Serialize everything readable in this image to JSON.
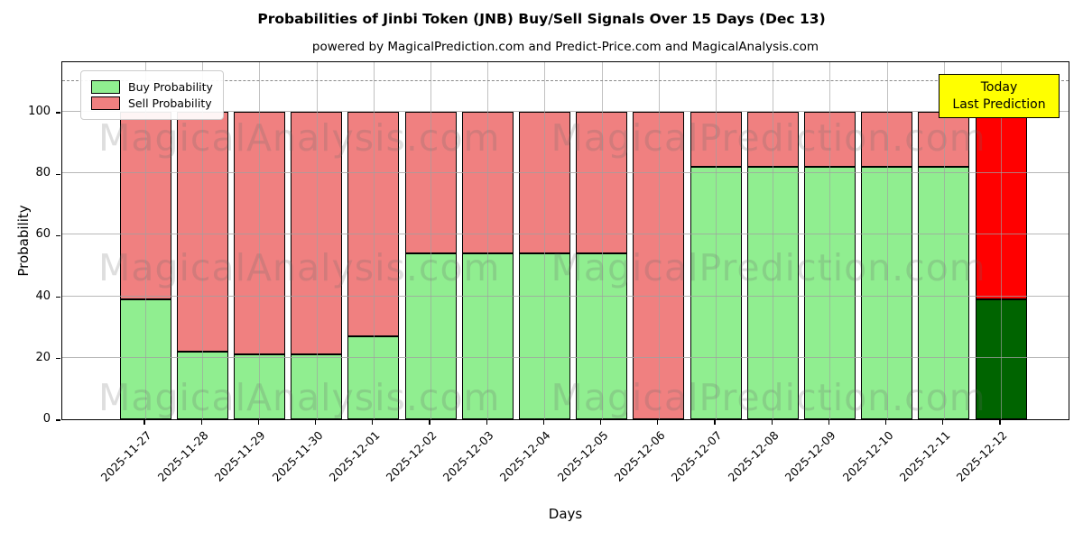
{
  "title": "Probabilities of Jinbi Token (JNB) Buy/Sell Signals Over 15 Days (Dec 13)",
  "subtitle": "powered by MagicalPrediction.com and Predict-Price.com and MagicalAnalysis.com",
  "axes": {
    "x_label": "Days",
    "y_label": "Probability",
    "y_ticks": [
      0,
      20,
      40,
      60,
      80,
      100
    ]
  },
  "legend": [
    {
      "label": "Buy Probability",
      "color": "#90ee90"
    },
    {
      "label": "Sell Probability",
      "color": "#f08080"
    }
  ],
  "annotation": {
    "line1": "Today",
    "line2": "Last Prediction",
    "bg": "#ffff00",
    "border": "#000000"
  },
  "watermarks": [
    "MagicalAnalysis.com",
    "MagicalPrediction.com"
  ],
  "chart_data": {
    "type": "bar",
    "stacked": true,
    "title": "Probabilities of Jinbi Token (JNB) Buy/Sell Signals Over 15 Days (Dec 13)",
    "xlabel": "Days",
    "ylabel": "Probability",
    "ylim": [
      0,
      116.7
    ],
    "grid": true,
    "dashed_line_y": 110,
    "legend_position": "upper left",
    "categories": [
      "2025-11-27",
      "2025-11-28",
      "2025-11-29",
      "2025-11-30",
      "2025-12-01",
      "2025-12-02",
      "2025-12-03",
      "2025-12-04",
      "2025-12-05",
      "2025-12-06",
      "2025-12-07",
      "2025-12-08",
      "2025-12-09",
      "2025-12-10",
      "2025-12-11",
      "2025-12-12"
    ],
    "series": [
      {
        "name": "Buy Probability",
        "color": "#90ee90",
        "values": [
          39,
          22,
          21,
          21,
          27,
          54,
          54,
          54,
          54,
          0,
          82,
          82,
          82,
          82,
          82,
          39
        ]
      },
      {
        "name": "Sell Probability",
        "color": "#f08080",
        "values": [
          61,
          78,
          79,
          79,
          73,
          46,
          46,
          46,
          46,
          100,
          18,
          18,
          18,
          18,
          18,
          61
        ]
      }
    ],
    "last_bar_colors": {
      "buy": "#006400",
      "sell": "#ff0000"
    },
    "bar_edge_color": "#000000"
  }
}
